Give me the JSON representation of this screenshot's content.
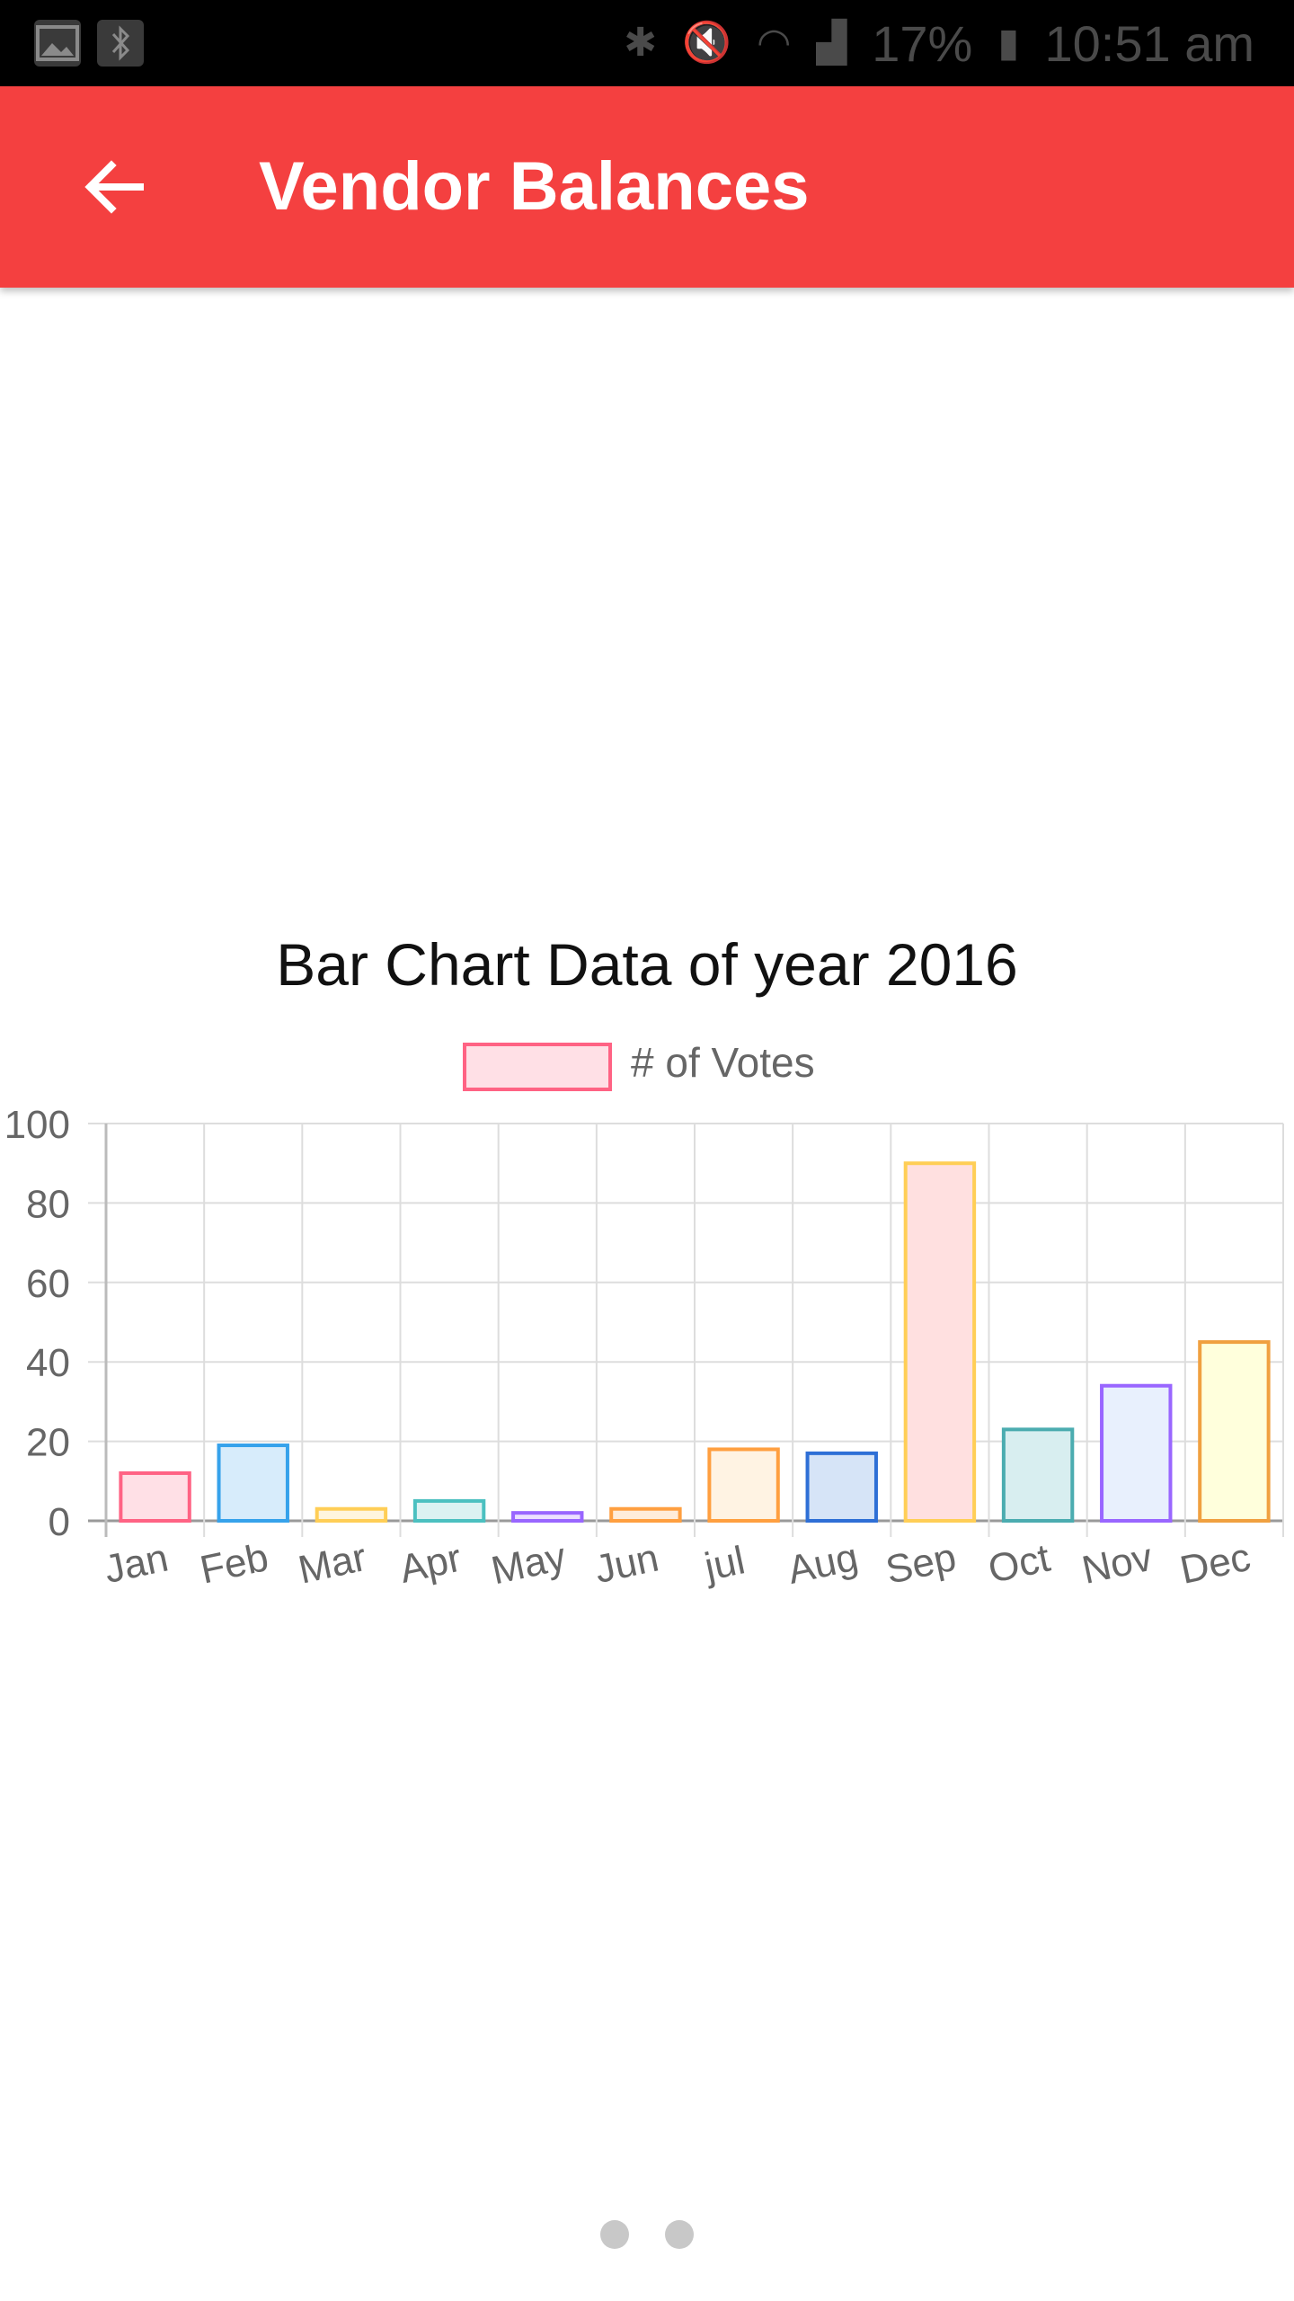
{
  "status_bar": {
    "battery": "17%",
    "time": "10:51 am",
    "icons": [
      "gallery-icon",
      "bluetooth-icon",
      "bluetooth-icon",
      "mute-icon",
      "wifi-icon",
      "signal-icon",
      "battery-charging-icon"
    ]
  },
  "app_bar": {
    "title": "Vendor Balances",
    "back_icon": "arrow-left-icon",
    "color": "#f44040"
  },
  "chart_data": {
    "type": "bar",
    "title": "Bar Chart Data of year 2016",
    "legend": {
      "label": "# of Votes",
      "position": "top"
    },
    "categories": [
      "Jan",
      "Feb",
      "Mar",
      "Apr",
      "May",
      "Jun",
      "jul",
      "Aug",
      "Sep",
      "Oct",
      "Nov",
      "Dec"
    ],
    "values": [
      12,
      19,
      3,
      5,
      2,
      3,
      18,
      17,
      90,
      23,
      34,
      45
    ],
    "ylim": [
      0,
      100
    ],
    "yticks": [
      0,
      20,
      40,
      60,
      80,
      100
    ],
    "grid": true,
    "colors": {
      "border": [
        "#ff6384",
        "#36a2eb",
        "#ffce56",
        "#4bc0c0",
        "#9966ff",
        "#ff9f40",
        "#ff9f40",
        "#2e6fd6",
        "#ffce56",
        "#4bacb0",
        "#9966ff",
        "#f0a040"
      ],
      "fill": [
        "#ffe0e6",
        "#d7ecfb",
        "#fff5dd",
        "#dbf2f2",
        "#ebe0ff",
        "#ffecd9",
        "#fff3e3",
        "#d6e4f7",
        "#ffe0e0",
        "#d8eef0",
        "#e8f0fd",
        "#ffffdc"
      ]
    }
  },
  "pager": {
    "count": 2
  }
}
